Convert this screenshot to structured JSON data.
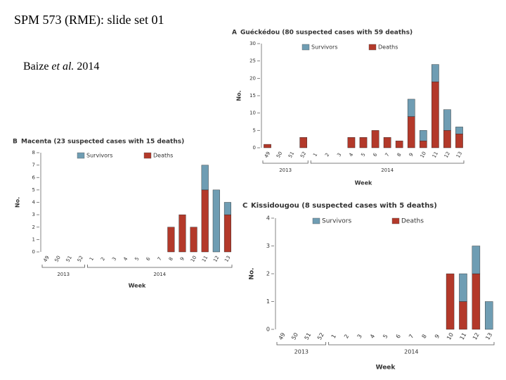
{
  "slide": {
    "title": "SPM 573 (RME): slide set 01",
    "citation": {
      "author": "Baize",
      "etal": "et al.",
      "year": "2014"
    }
  },
  "chart_data": [
    {
      "type": "bar",
      "panel": "A",
      "title": "Guéckédou (80 suspected cases with 59 deaths)",
      "x_label": "Week",
      "y_label": "No.",
      "x_groups": [
        "2013",
        "2014"
      ],
      "categories": [
        "49",
        "50",
        "51",
        "52",
        "1",
        "2",
        "3",
        "4",
        "5",
        "6",
        "7",
        "8",
        "9",
        "10",
        "11",
        "12",
        "13"
      ],
      "series": [
        {
          "name": "Survivors",
          "color": "#6f9db3",
          "values": [
            0,
            0,
            0,
            0,
            0,
            0,
            0,
            0,
            0,
            0,
            0,
            0,
            5,
            3,
            5,
            6,
            2
          ]
        },
        {
          "name": "Deaths",
          "color": "#b3392a",
          "values": [
            1,
            0,
            0,
            3,
            0,
            0,
            0,
            3,
            3,
            5,
            3,
            2,
            9,
            2,
            19,
            5,
            4
          ]
        }
      ],
      "stacked": true,
      "ylim": [
        0,
        30
      ],
      "yticks": [
        0,
        5,
        10,
        15,
        20,
        25,
        30
      ]
    },
    {
      "type": "bar",
      "panel": "B",
      "title": "Macenta (23 suspected cases with 15 deaths)",
      "x_label": "Week",
      "y_label": "No.",
      "x_groups": [
        "2013",
        "2014"
      ],
      "categories": [
        "49",
        "50",
        "51",
        "52",
        "1",
        "2",
        "3",
        "4",
        "5",
        "6",
        "7",
        "8",
        "9",
        "10",
        "11",
        "12",
        "13"
      ],
      "series": [
        {
          "name": "Survivors",
          "color": "#6f9db3",
          "values": [
            0,
            0,
            0,
            0,
            0,
            0,
            0,
            0,
            0,
            0,
            0,
            0,
            0,
            0,
            2,
            5,
            1
          ]
        },
        {
          "name": "Deaths",
          "color": "#b3392a",
          "values": [
            0,
            0,
            0,
            0,
            0,
            0,
            0,
            0,
            0,
            0,
            0,
            2,
            3,
            2,
            5,
            0,
            3
          ]
        }
      ],
      "stacked": true,
      "ylim": [
        0,
        8
      ],
      "yticks": [
        0,
        1,
        2,
        3,
        4,
        5,
        6,
        7,
        8
      ]
    },
    {
      "type": "bar",
      "panel": "C",
      "title": "Kissidougou (8 suspected cases with 5 deaths)",
      "x_label": "Week",
      "y_label": "No.",
      "x_groups": [
        "2013",
        "2014"
      ],
      "categories": [
        "49",
        "50",
        "51",
        "52",
        "1",
        "2",
        "3",
        "4",
        "5",
        "6",
        "7",
        "8",
        "9",
        "10",
        "11",
        "12",
        "13"
      ],
      "series": [
        {
          "name": "Survivors",
          "color": "#6f9db3",
          "values": [
            0,
            0,
            0,
            0,
            0,
            0,
            0,
            0,
            0,
            0,
            0,
            0,
            0,
            0,
            1,
            1,
            1
          ]
        },
        {
          "name": "Deaths",
          "color": "#b3392a",
          "values": [
            0,
            0,
            0,
            0,
            0,
            0,
            0,
            0,
            0,
            0,
            0,
            0,
            0,
            2,
            1,
            2,
            0
          ]
        }
      ],
      "stacked": true,
      "ylim": [
        0,
        4
      ],
      "yticks": [
        0,
        1,
        2,
        3,
        4
      ]
    }
  ]
}
